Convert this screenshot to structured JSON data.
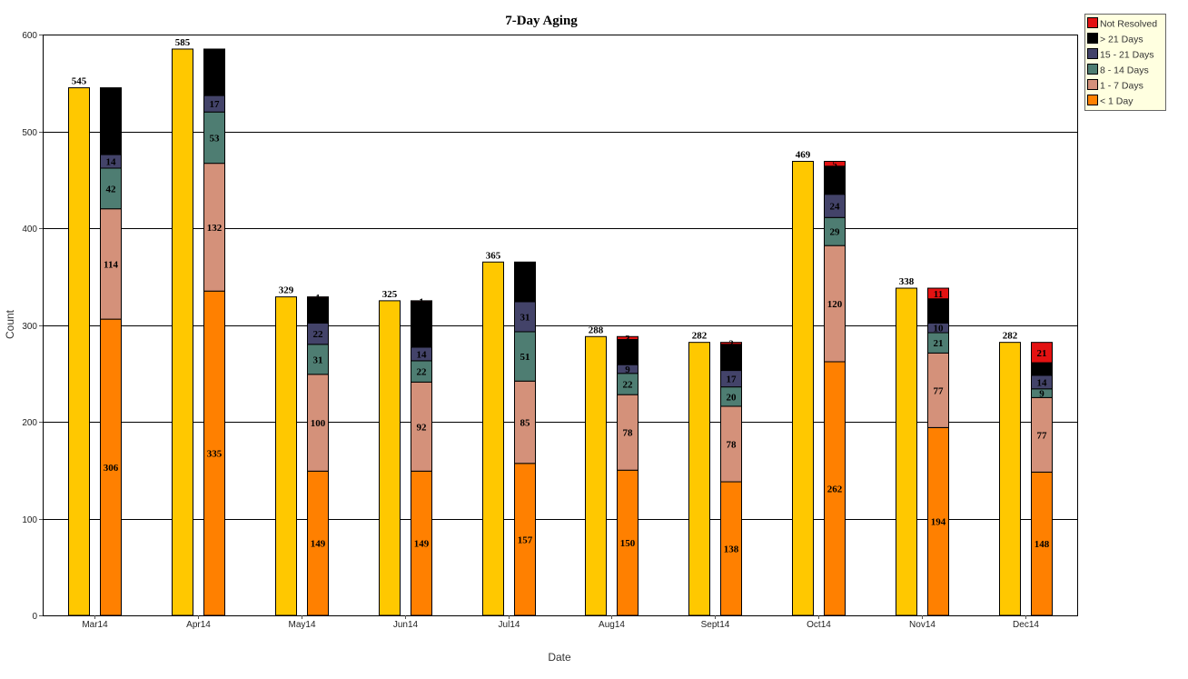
{
  "chart_data": {
    "type": "bar",
    "title": "7-Day Aging",
    "xlabel": "Date",
    "ylabel": "Count",
    "ylim": [
      0,
      600
    ],
    "yticks": [
      0,
      100,
      200,
      300,
      400,
      500,
      600
    ],
    "grid": true,
    "legend_position": "top-right",
    "categories": [
      "Mar14",
      "Apr14",
      "May14",
      "Jun14",
      "Jul14",
      "Aug14",
      "Sept14",
      "Oct14",
      "Nov14",
      "Dec14"
    ],
    "totals": {
      "color": "#ffc800",
      "values": [
        545,
        585,
        329,
        325,
        365,
        288,
        282,
        469,
        338,
        282
      ]
    },
    "stacked_series": [
      {
        "name": "< 1 Day",
        "color": "#ff8000",
        "values": [
          306,
          335,
          149,
          149,
          157,
          150,
          138,
          262,
          194,
          148
        ]
      },
      {
        "name": "1 - 7 Days",
        "color": "#d4917a",
        "values": [
          114,
          132,
          100,
          92,
          85,
          78,
          78,
          120,
          77,
          77
        ]
      },
      {
        "name": "8 - 14 Days",
        "color": "#4e7d72",
        "values": [
          42,
          53,
          31,
          22,
          51,
          22,
          20,
          29,
          21,
          9
        ]
      },
      {
        "name": "15 - 21 Days",
        "color": "#434369",
        "values": [
          14,
          17,
          22,
          14,
          31,
          9,
          17,
          24,
          10,
          14
        ]
      },
      {
        "name": "> 21 Days",
        "color": "#000000",
        "values": [
          69,
          48,
          26,
          47,
          41,
          26,
          27,
          29,
          25,
          13
        ]
      },
      {
        "name": "Not Resolved",
        "color": "#e31212",
        "values": [
          0,
          0,
          1,
          1,
          0,
          3,
          2,
          5,
          11,
          21
        ]
      }
    ]
  }
}
